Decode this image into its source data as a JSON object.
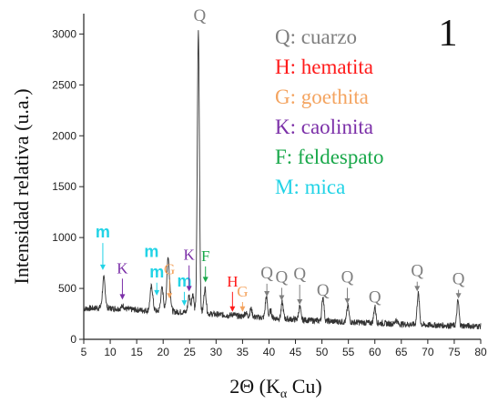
{
  "chart_data": {
    "type": "line",
    "panel_label": "1",
    "xlabel": "2Θ (K",
    "xlabel_sub": "α",
    "xlabel_tail": " Cu)",
    "ylabel": "Intensidad relativa (u.a.)",
    "xlim": [
      5,
      80
    ],
    "ylim": [
      0,
      3200
    ],
    "xticks": [
      5,
      10,
      15,
      20,
      25,
      30,
      35,
      40,
      45,
      50,
      55,
      60,
      65,
      70,
      75,
      80
    ],
    "yticks": [
      0,
      500,
      1000,
      1500,
      2000,
      2500,
      3000
    ],
    "legend": [
      {
        "text": "Q: cuarzo",
        "color": "#7f7f7f"
      },
      {
        "text": "H: hematita",
        "color": "#ff1a1a"
      },
      {
        "text": "G: goethita",
        "color": "#f4a460"
      },
      {
        "text": "K: caolinita",
        "color": "#7b2fa8"
      },
      {
        "text": "F: feldespato",
        "color": "#19a84a"
      },
      {
        "text": "M: mica",
        "color": "#22d3e6"
      }
    ],
    "baseline": [
      [
        5,
        300
      ],
      [
        8,
        310
      ],
      [
        12,
        300
      ],
      [
        15,
        290
      ],
      [
        20,
        275
      ],
      [
        25,
        265
      ],
      [
        30,
        245
      ],
      [
        35,
        225
      ],
      [
        40,
        210
      ],
      [
        45,
        195
      ],
      [
        50,
        180
      ],
      [
        55,
        170
      ],
      [
        60,
        160
      ],
      [
        65,
        150
      ],
      [
        70,
        140
      ],
      [
        75,
        135
      ],
      [
        80,
        128
      ]
    ],
    "peaks": [
      {
        "x": 8.8,
        "y": 600,
        "w": 0.25
      },
      {
        "x": 12.4,
        "y": 330,
        "w": 0.25
      },
      {
        "x": 17.8,
        "y": 520,
        "w": 0.25
      },
      {
        "x": 19.8,
        "y": 500,
        "w": 0.25
      },
      {
        "x": 20.9,
        "y": 780,
        "w": 0.22
      },
      {
        "x": 21.3,
        "y": 440,
        "w": 0.2
      },
      {
        "x": 24.9,
        "y": 430,
        "w": 0.22
      },
      {
        "x": 25.6,
        "y": 450,
        "w": 0.2
      },
      {
        "x": 26.65,
        "y": 3020,
        "w": 0.2
      },
      {
        "x": 27.9,
        "y": 500,
        "w": 0.22
      },
      {
        "x": 33.2,
        "y": 250,
        "w": 0.25
      },
      {
        "x": 35.6,
        "y": 260,
        "w": 0.25
      },
      {
        "x": 36.6,
        "y": 300,
        "w": 0.2
      },
      {
        "x": 39.5,
        "y": 420,
        "w": 0.2
      },
      {
        "x": 40.3,
        "y": 280,
        "w": 0.2
      },
      {
        "x": 42.5,
        "y": 360,
        "w": 0.2
      },
      {
        "x": 45.8,
        "y": 320,
        "w": 0.2
      },
      {
        "x": 50.2,
        "y": 420,
        "w": 0.2
      },
      {
        "x": 54.9,
        "y": 330,
        "w": 0.2
      },
      {
        "x": 60.0,
        "y": 320,
        "w": 0.2
      },
      {
        "x": 64.0,
        "y": 190,
        "w": 0.2
      },
      {
        "x": 68.2,
        "y": 450,
        "w": 0.22
      },
      {
        "x": 75.7,
        "y": 380,
        "w": 0.2
      }
    ],
    "annotations": [
      {
        "text": "Q",
        "x": 26.9,
        "y": 3130,
        "color": "#7f7f7f",
        "arrow": false
      },
      {
        "text": "m",
        "x": 8.6,
        "y": 1000,
        "color": "#22d3e6",
        "arrow": true,
        "ay": 680
      },
      {
        "text": "K",
        "x": 12.3,
        "y": 650,
        "color": "#7b2fa8",
        "arrow": true,
        "ay": 390
      },
      {
        "text": "m",
        "x": 17.8,
        "y": 810,
        "color": "#22d3e6",
        "arrow": false
      },
      {
        "text": "m",
        "x": 18.8,
        "y": 610,
        "color": "#22d3e6",
        "arrow": true,
        "ay": 430
      },
      {
        "text": "G",
        "x": 21.2,
        "y": 640,
        "color": "#f4a460",
        "arrow": true,
        "ay": 400
      },
      {
        "text": "m",
        "x": 24.0,
        "y": 520,
        "color": "#22d3e6",
        "arrow": true,
        "ay": 330
      },
      {
        "text": "K",
        "x": 24.9,
        "y": 780,
        "color": "#7b2fa8",
        "arrow": true,
        "ay": 470
      },
      {
        "text": "F",
        "x": 28.0,
        "y": 770,
        "color": "#19a84a",
        "arrow": true,
        "ay": 560
      },
      {
        "text": "H",
        "x": 33.1,
        "y": 520,
        "color": "#ff1a1a",
        "arrow": true,
        "ay": 270
      },
      {
        "text": "G",
        "x": 35.0,
        "y": 420,
        "color": "#f4a460",
        "arrow": true,
        "ay": 270
      },
      {
        "text": "Q",
        "x": 39.6,
        "y": 600,
        "color": "#7f7f7f",
        "arrow": true,
        "ay": 420
      },
      {
        "text": "Q",
        "x": 42.4,
        "y": 560,
        "color": "#7f7f7f",
        "arrow": true,
        "ay": 380
      },
      {
        "text": "Q",
        "x": 45.8,
        "y": 590,
        "color": "#7f7f7f",
        "arrow": true,
        "ay": 340
      },
      {
        "text": "Q",
        "x": 50.2,
        "y": 430,
        "color": "#7f7f7f",
        "arrow": false
      },
      {
        "text": "Q",
        "x": 54.8,
        "y": 560,
        "color": "#7f7f7f",
        "arrow": true,
        "ay": 350
      },
      {
        "text": "Q",
        "x": 60.0,
        "y": 360,
        "color": "#7f7f7f",
        "arrow": false
      },
      {
        "text": "Q",
        "x": 68.0,
        "y": 620,
        "color": "#7f7f7f",
        "arrow": true,
        "ay": 470
      },
      {
        "text": "Q",
        "x": 75.8,
        "y": 540,
        "color": "#7f7f7f",
        "arrow": true,
        "ay": 400
      }
    ]
  }
}
